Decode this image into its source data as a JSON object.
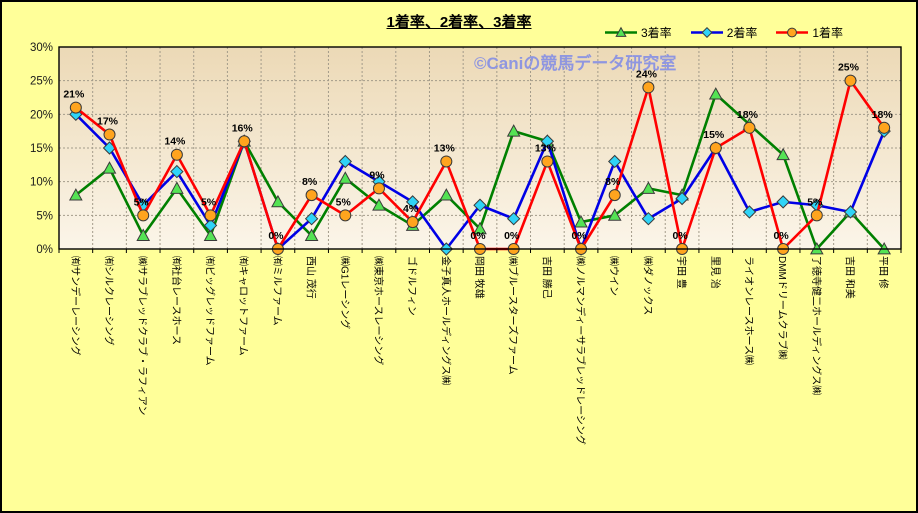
{
  "watermark": "©Caniの競馬データ研究室",
  "colors": {
    "background": "#ffff99",
    "plot_top": "#ecd9b6",
    "plot_bottom": "#fbf5e9",
    "grid": "#a39b8a",
    "axis": "#000000",
    "watermark": "#8f96e0",
    "data_label": "#000000",
    "tick_label": "#1a1a1a"
  },
  "chart_data": {
    "type": "line",
    "title": "1着率、2着率、3着率",
    "categories": [
      "㈲サンデーレーシング",
      "㈲シルクレーシング",
      "㈱サラブレッドクラブ・ラフィアン",
      "㈲社台レースホース",
      "㈲ビッグレッドファーム",
      "㈲キャロットファーム",
      "㈲ミルファーム",
      "西山 茂行",
      "㈱G1レーシング",
      "㈱東京ホースレーシング",
      "ゴドルフィン",
      "金子真人ホールディングス㈱",
      "岡田 牧雄",
      "㈱ブルースターズファーム",
      "吉田 勝己",
      "㈱ノルマンディーサラブレッドレーシング",
      "㈱ウイン",
      "㈱ダノックス",
      "宇田 豊",
      "里見 治",
      "ライオンレースホース㈱",
      "DMMドリームクラブ㈱",
      "了徳寺健二ホールディングス㈱",
      "吉田 和美",
      "平田 修"
    ],
    "series": [
      {
        "name": "3着率",
        "marker": "triangle",
        "line_color": "#008000",
        "marker_fill": "#54e354",
        "values": [
          8,
          12,
          2,
          9,
          2,
          16,
          7,
          2,
          10.5,
          6.5,
          3.5,
          8,
          3,
          17.5,
          16,
          4,
          5,
          9,
          8,
          23,
          18.5,
          14,
          0,
          5.5,
          0
        ]
      },
      {
        "name": "2着率",
        "marker": "diamond",
        "line_color": "#0000e6",
        "marker_fill": "#2fd4f7",
        "values": [
          20,
          15,
          6.5,
          11.5,
          3.5,
          16,
          0,
          4.5,
          13,
          10,
          7,
          0,
          6.5,
          4.5,
          16,
          0,
          13,
          4.5,
          7.5,
          15,
          5.5,
          7,
          6.5,
          5.5,
          17.5
        ]
      },
      {
        "name": "1着率",
        "marker": "circle",
        "line_color": "#ff0000",
        "marker_fill": "#ffa41e",
        "values": [
          21,
          17,
          5,
          14,
          5,
          16,
          0,
          8,
          5,
          9,
          4,
          13,
          0,
          0,
          13,
          0,
          8,
          24,
          0,
          15,
          18,
          0,
          5,
          25,
          18
        ],
        "data_labels": [
          "21%",
          "17%",
          "5%",
          "14%",
          "5%",
          "16%",
          "0%",
          "8%",
          "5%",
          "9%",
          "4%",
          "13%",
          "0%",
          "0%",
          "13%",
          "0%",
          "8%",
          "24%",
          "0%",
          "15%",
          "18%",
          "0%",
          "5%",
          "25%",
          "18%"
        ]
      }
    ],
    "y_ticks": [
      "0%",
      "5%",
      "10%",
      "15%",
      "20%",
      "25%",
      "30%"
    ],
    "ylim": [
      0,
      30
    ],
    "grid": true,
    "legend_position": "top-right"
  }
}
